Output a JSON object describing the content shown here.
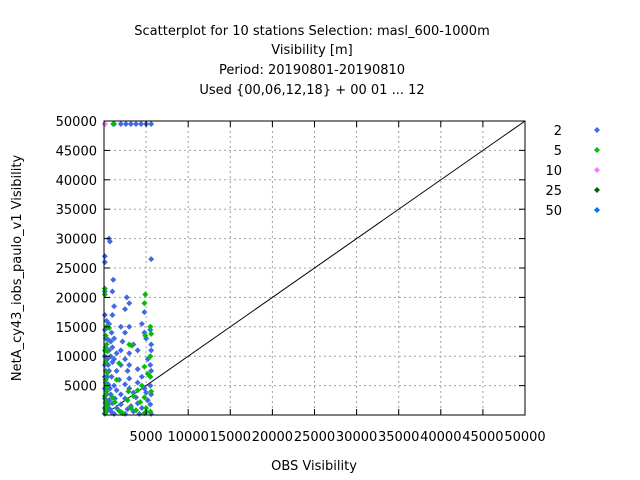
{
  "chart_data": {
    "type": "scatter",
    "title_lines": [
      "Scatterplot for   10 stations Selection: masl_600-1000m",
      "Visibility [m]",
      "Period: 20190801-20190810",
      "Used {00,06,12,18} + 00 01 ... 12"
    ],
    "xlabel": "OBS Visibility",
    "ylabel": "NetA_cy43_iobs_paulo_v1 Visibility",
    "xlim": [
      0,
      50000
    ],
    "ylim": [
      0,
      50000
    ],
    "xticks": [
      5000,
      10000,
      15000,
      20000,
      25000,
      30000,
      35000,
      40000,
      45000,
      50000
    ],
    "yticks": [
      5000,
      10000,
      15000,
      20000,
      25000,
      30000,
      35000,
      40000,
      45000,
      50000
    ],
    "xtick_labels": [
      "5000",
      "10000",
      "15000",
      "20000",
      "25000",
      "30000",
      "35000",
      "40000",
      "45000",
      "50000"
    ],
    "ytick_labels": [
      "5000",
      "10000",
      "15000",
      "20000",
      "25000",
      "30000",
      "35000",
      "40000",
      "45000",
      "50000"
    ],
    "grid": true,
    "legend_placement": "right",
    "diagonal": [
      [
        0,
        0
      ],
      [
        50000,
        50000
      ]
    ],
    "series": [
      {
        "name": "2",
        "color": "#4169e1",
        "points": [
          [
            100,
            49500
          ],
          [
            1200,
            49500
          ],
          [
            2000,
            49500
          ],
          [
            2600,
            49500
          ],
          [
            3200,
            49500
          ],
          [
            3800,
            49500
          ],
          [
            4400,
            49500
          ],
          [
            5000,
            49500
          ],
          [
            5600,
            49500
          ],
          [
            600,
            30000
          ],
          [
            700,
            29500
          ],
          [
            100,
            27000
          ],
          [
            100,
            26000
          ],
          [
            5600,
            26500
          ],
          [
            1100,
            23000
          ],
          [
            100,
            21000
          ],
          [
            1000,
            21000
          ],
          [
            2700,
            20000
          ],
          [
            3000,
            19000
          ],
          [
            2500,
            18000
          ],
          [
            1200,
            18500
          ],
          [
            100,
            17000
          ],
          [
            1000,
            17000
          ],
          [
            4800,
            17500
          ],
          [
            300,
            16000
          ],
          [
            600,
            15500
          ],
          [
            2000,
            15000
          ],
          [
            3000,
            15000
          ],
          [
            4500,
            15500
          ],
          [
            100,
            14500
          ],
          [
            900,
            14000
          ],
          [
            2500,
            14000
          ],
          [
            4800,
            14000
          ],
          [
            5500,
            14500
          ],
          [
            200,
            13000
          ],
          [
            500,
            12800
          ],
          [
            800,
            12500
          ],
          [
            1200,
            13000
          ],
          [
            2200,
            12500
          ],
          [
            3500,
            12000
          ],
          [
            5000,
            13000
          ],
          [
            5600,
            12000
          ],
          [
            200,
            11500
          ],
          [
            600,
            11000
          ],
          [
            1000,
            11500
          ],
          [
            1500,
            10500
          ],
          [
            2000,
            11000
          ],
          [
            3000,
            10500
          ],
          [
            4000,
            11000
          ],
          [
            5600,
            11000
          ],
          [
            100,
            10000
          ],
          [
            400,
            9500
          ],
          [
            800,
            10000
          ],
          [
            1200,
            9500
          ],
          [
            2500,
            9500
          ],
          [
            5200,
            9500
          ],
          [
            100,
            8500
          ],
          [
            500,
            8500
          ],
          [
            1000,
            9000
          ],
          [
            2000,
            8500
          ],
          [
            3000,
            8500
          ],
          [
            5500,
            8500
          ],
          [
            200,
            7500
          ],
          [
            600,
            7500
          ],
          [
            1500,
            7500
          ],
          [
            2800,
            7500
          ],
          [
            4000,
            7800
          ],
          [
            5600,
            7500
          ],
          [
            100,
            6500
          ],
          [
            400,
            6500
          ],
          [
            900,
            6500
          ],
          [
            1800,
            6000
          ],
          [
            3000,
            6200
          ],
          [
            4500,
            6500
          ],
          [
            200,
            5500
          ],
          [
            500,
            5200
          ],
          [
            1200,
            5000
          ],
          [
            2500,
            5200
          ],
          [
            4000,
            5500
          ],
          [
            5500,
            5000
          ],
          [
            100,
            4500
          ],
          [
            700,
            4500
          ],
          [
            1500,
            4200
          ],
          [
            3000,
            4500
          ],
          [
            4800,
            4500
          ],
          [
            300,
            3500
          ],
          [
            800,
            3500
          ],
          [
            2000,
            3500
          ],
          [
            3500,
            3800
          ],
          [
            5000,
            3800
          ],
          [
            5600,
            3500
          ],
          [
            100,
            2800
          ],
          [
            600,
            2500
          ],
          [
            1300,
            2800
          ],
          [
            2500,
            2800
          ],
          [
            3800,
            3000
          ],
          [
            5200,
            2500
          ],
          [
            200,
            2000
          ],
          [
            500,
            1800
          ],
          [
            1000,
            2000
          ],
          [
            2000,
            1800
          ],
          [
            3200,
            1500
          ],
          [
            4000,
            2000
          ],
          [
            5500,
            1800
          ],
          [
            100,
            1200
          ],
          [
            700,
            1000
          ],
          [
            1500,
            1200
          ],
          [
            2800,
            1000
          ],
          [
            4500,
            1200
          ],
          [
            300,
            600
          ],
          [
            900,
            500
          ],
          [
            2000,
            500
          ],
          [
            3500,
            600
          ],
          [
            5000,
            500
          ],
          [
            100,
            200
          ],
          [
            1200,
            200
          ],
          [
            2500,
            200
          ],
          [
            4200,
            200
          ],
          [
            5600,
            200
          ]
        ]
      },
      {
        "name": "5",
        "color": "#00c000",
        "points": [
          [
            1100,
            49500
          ],
          [
            100,
            21500
          ],
          [
            100,
            20500
          ],
          [
            4900,
            20500
          ],
          [
            4800,
            19000
          ],
          [
            300,
            15000
          ],
          [
            600,
            14800
          ],
          [
            5500,
            15000
          ],
          [
            200,
            13500
          ],
          [
            4900,
            13500
          ],
          [
            5600,
            13800
          ],
          [
            300,
            12000
          ],
          [
            3000,
            12000
          ],
          [
            3300,
            11800
          ],
          [
            100,
            11000
          ],
          [
            400,
            10800
          ],
          [
            5500,
            10000
          ],
          [
            200,
            9000
          ],
          [
            1800,
            8800
          ],
          [
            4800,
            8200
          ],
          [
            400,
            7200
          ],
          [
            5200,
            7000
          ],
          [
            200,
            6000
          ],
          [
            1500,
            6000
          ],
          [
            5500,
            6500
          ],
          [
            300,
            5000
          ],
          [
            4500,
            5000
          ],
          [
            300,
            4000
          ],
          [
            2900,
            4000
          ],
          [
            4000,
            4200
          ],
          [
            5600,
            4000
          ],
          [
            100,
            3200
          ],
          [
            1000,
            3000
          ],
          [
            3500,
            3200
          ],
          [
            4800,
            3000
          ],
          [
            200,
            2200
          ],
          [
            1300,
            2200
          ],
          [
            2800,
            2500
          ],
          [
            4300,
            2200
          ],
          [
            400,
            1500
          ],
          [
            3200,
            1200
          ],
          [
            5000,
            1200
          ],
          [
            200,
            800
          ],
          [
            1800,
            700
          ],
          [
            3800,
            800
          ],
          [
            5500,
            600
          ],
          [
            100,
            300
          ],
          [
            2200,
            300
          ],
          [
            4800,
            300
          ]
        ]
      },
      {
        "name": "10",
        "color": "#ff77ff",
        "points": [
          [
            100,
            49500
          ]
        ]
      },
      {
        "name": "25",
        "color": "#006400",
        "points": []
      },
      {
        "name": "50",
        "color": "#0070ff",
        "points": []
      }
    ]
  }
}
